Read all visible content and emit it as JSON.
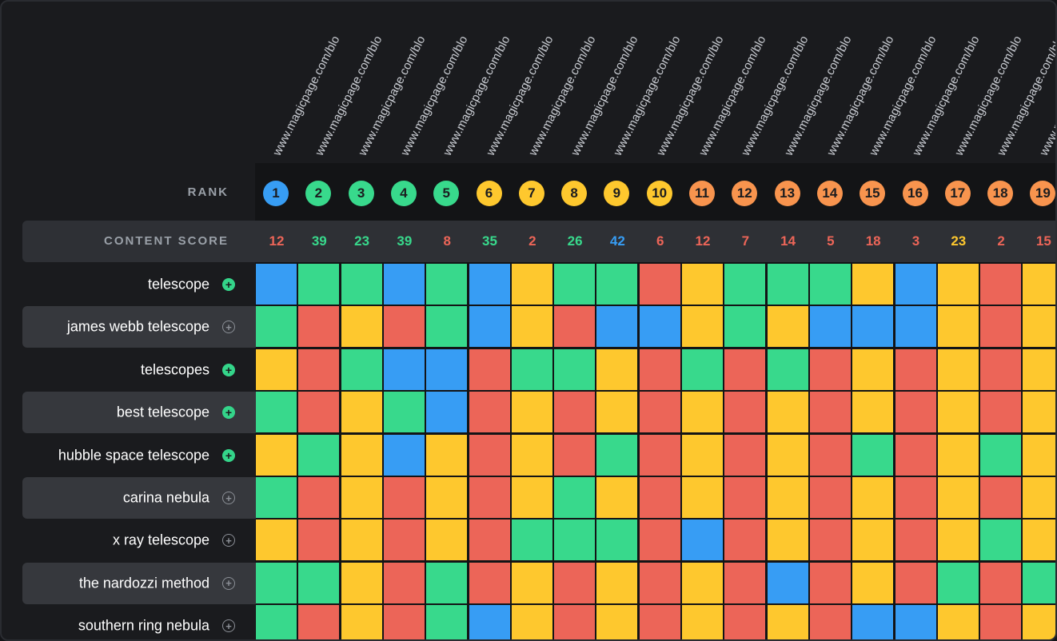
{
  "colors": {
    "green": "#38d98c",
    "blue": "#379df4",
    "yellow": "#fec82e",
    "red": "#ec6558",
    "orange": "#f8944e",
    "background": "#1a1b1e",
    "stripe": "#36383d"
  },
  "urls": [
    "www.magicpage.com/blo",
    "www.magicpage.com/blo",
    "www.magicpage.com/blo",
    "www.magicpage.com/blo",
    "www.magicpage.com/blo",
    "www.magicpage.com/blo",
    "www.magicpage.com/blo",
    "www.magicpage.com/blo",
    "www.magicpage.com/blo",
    "www.magicpage.com/blo",
    "www.magicpage.com/blo",
    "www.magicpage.com/blo",
    "www.magicpage.com/blo",
    "www.magicpage.com/blo",
    "www.magicpage.com/blo",
    "www.magicpage.com/blo",
    "www.magicpage.com/blo",
    "www.magicpage.com/blo",
    "www.magicpage.com/blo"
  ],
  "rank_label": "RANK",
  "content_score_label": "CONTENT SCORE",
  "ranks": [
    {
      "value": "1",
      "color": "blue"
    },
    {
      "value": "2",
      "color": "green"
    },
    {
      "value": "3",
      "color": "green"
    },
    {
      "value": "4",
      "color": "green"
    },
    {
      "value": "5",
      "color": "green"
    },
    {
      "value": "6",
      "color": "yellow"
    },
    {
      "value": "7",
      "color": "yellow"
    },
    {
      "value": "8",
      "color": "yellow"
    },
    {
      "value": "9",
      "color": "yellow"
    },
    {
      "value": "10",
      "color": "yellow"
    },
    {
      "value": "11",
      "color": "orange"
    },
    {
      "value": "12",
      "color": "orange"
    },
    {
      "value": "13",
      "color": "orange"
    },
    {
      "value": "14",
      "color": "orange"
    },
    {
      "value": "15",
      "color": "orange"
    },
    {
      "value": "16",
      "color": "orange"
    },
    {
      "value": "17",
      "color": "orange"
    },
    {
      "value": "18",
      "color": "orange"
    },
    {
      "value": "19",
      "color": "orange"
    }
  ],
  "scores": [
    {
      "value": "12",
      "color": "red"
    },
    {
      "value": "39",
      "color": "green"
    },
    {
      "value": "23",
      "color": "green"
    },
    {
      "value": "39",
      "color": "green"
    },
    {
      "value": "8",
      "color": "red"
    },
    {
      "value": "35",
      "color": "green"
    },
    {
      "value": "2",
      "color": "red"
    },
    {
      "value": "26",
      "color": "green"
    },
    {
      "value": "42",
      "color": "blue"
    },
    {
      "value": "6",
      "color": "red"
    },
    {
      "value": "12",
      "color": "red"
    },
    {
      "value": "7",
      "color": "red"
    },
    {
      "value": "14",
      "color": "red"
    },
    {
      "value": "5",
      "color": "red"
    },
    {
      "value": "18",
      "color": "red"
    },
    {
      "value": "3",
      "color": "red"
    },
    {
      "value": "23",
      "color": "yellow"
    },
    {
      "value": "2",
      "color": "red"
    },
    {
      "value": "15",
      "color": "red"
    }
  ],
  "keywords": [
    {
      "label": "telescope",
      "icon": "plus-circle-icon",
      "active": true,
      "cells": [
        "blue",
        "green",
        "green",
        "blue",
        "green",
        "blue",
        "yellow",
        "green",
        "green",
        "red",
        "yellow",
        "green",
        "green",
        "green",
        "yellow",
        "blue",
        "yellow",
        "red",
        "yellow"
      ]
    },
    {
      "label": "james webb telescope",
      "icon": "plus-circle-icon",
      "active": false,
      "cells": [
        "green",
        "red",
        "yellow",
        "red",
        "green",
        "blue",
        "yellow",
        "red",
        "blue",
        "blue",
        "yellow",
        "green",
        "yellow",
        "blue",
        "blue",
        "blue",
        "yellow",
        "red",
        "yellow"
      ]
    },
    {
      "label": "telescopes",
      "icon": "plus-circle-icon",
      "active": true,
      "cells": [
        "yellow",
        "red",
        "green",
        "blue",
        "blue",
        "red",
        "green",
        "green",
        "yellow",
        "red",
        "green",
        "red",
        "green",
        "red",
        "yellow",
        "red",
        "yellow",
        "red",
        "yellow"
      ]
    },
    {
      "label": "best telescope",
      "icon": "plus-circle-icon",
      "active": true,
      "cells": [
        "green",
        "red",
        "yellow",
        "green",
        "blue",
        "red",
        "yellow",
        "red",
        "yellow",
        "red",
        "yellow",
        "red",
        "yellow",
        "red",
        "yellow",
        "red",
        "yellow",
        "red",
        "yellow"
      ]
    },
    {
      "label": "hubble space telescope",
      "icon": "plus-circle-icon",
      "active": true,
      "cells": [
        "yellow",
        "green",
        "yellow",
        "blue",
        "yellow",
        "red",
        "yellow",
        "red",
        "green",
        "red",
        "yellow",
        "red",
        "yellow",
        "red",
        "green",
        "red",
        "yellow",
        "green",
        "yellow"
      ]
    },
    {
      "label": "carina nebula",
      "icon": "plus-circle-icon",
      "active": false,
      "cells": [
        "green",
        "red",
        "yellow",
        "red",
        "yellow",
        "red",
        "yellow",
        "green",
        "yellow",
        "red",
        "yellow",
        "red",
        "yellow",
        "red",
        "yellow",
        "red",
        "yellow",
        "red",
        "yellow"
      ]
    },
    {
      "label": "x ray telescope",
      "icon": "plus-circle-icon",
      "active": false,
      "cells": [
        "yellow",
        "red",
        "yellow",
        "red",
        "yellow",
        "red",
        "green",
        "green",
        "green",
        "red",
        "blue",
        "red",
        "yellow",
        "red",
        "yellow",
        "red",
        "yellow",
        "green",
        "yellow"
      ]
    },
    {
      "label": "the nardozzi method",
      "icon": "plus-circle-icon",
      "active": false,
      "cells": [
        "green",
        "green",
        "yellow",
        "red",
        "green",
        "red",
        "yellow",
        "red",
        "yellow",
        "red",
        "yellow",
        "red",
        "blue",
        "red",
        "yellow",
        "red",
        "green",
        "red",
        "green"
      ]
    },
    {
      "label": "southern ring nebula",
      "icon": "plus-circle-icon",
      "active": false,
      "cells": [
        "green",
        "red",
        "yellow",
        "red",
        "green",
        "blue",
        "yellow",
        "red",
        "yellow",
        "red",
        "yellow",
        "red",
        "yellow",
        "red",
        "blue",
        "blue",
        "yellow",
        "red",
        "yellow"
      ]
    }
  ]
}
